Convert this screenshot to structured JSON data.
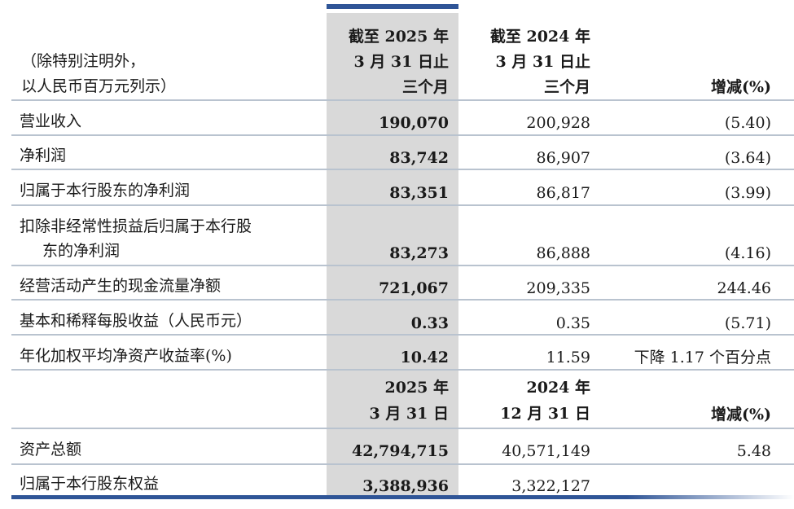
{
  "header": {
    "note": [
      "（除特别注明外，",
      "以人民币百万元列示）"
    ],
    "col1": [
      "截至 2025 年",
      "3 月 31 日止",
      "三个月"
    ],
    "col2": [
      "截至 2024 年",
      "3 月 31 日止",
      "三个月"
    ],
    "col3": "增减(%)"
  },
  "rows": [
    {
      "label": "营业收入",
      "v1": "190,070",
      "v2": "200,928",
      "v3": "(5.40)"
    },
    {
      "label": "净利润",
      "v1": "83,742",
      "v2": "86,907",
      "v3": "(3.64)"
    },
    {
      "label": "归属于本行股东的净利润",
      "v1": "83,351",
      "v2": "86,817",
      "v3": "(3.99)"
    },
    {
      "label_lines": [
        "扣除非经常性损益后归属于本行股",
        "东的净利润"
      ],
      "v1": "83,273",
      "v2": "86,888",
      "v3": "(4.16)"
    },
    {
      "label": "经营活动产生的现金流量净额",
      "v1": "721,067",
      "v2": "209,335",
      "v3": "244.46"
    },
    {
      "label": "基本和稀释每股收益（人民币元）",
      "v1": "0.33",
      "v2": "0.35",
      "v3": "(5.71)"
    },
    {
      "label": "年化加权平均净资产收益率(%)",
      "v1": "10.42",
      "v2": "11.59",
      "v3": "下降 1.17 个百分点"
    }
  ],
  "header2": {
    "col1": [
      "2025 年",
      "3 月 31 日"
    ],
    "col2": [
      "2024 年",
      "12 月 31 日"
    ],
    "col3": "增减(%)"
  },
  "rows2": [
    {
      "label": "资产总额",
      "v1": "42,794,715",
      "v2": "40,571,149",
      "v3": "5.48"
    },
    {
      "label": "归属于本行股东权益",
      "v1": "3,388,936",
      "v2": "3,322,127",
      "v3": ""
    }
  ],
  "colors": {
    "accent": "#2f5597",
    "shade": "#d9d9d9",
    "rule": "#b9c3cf"
  }
}
